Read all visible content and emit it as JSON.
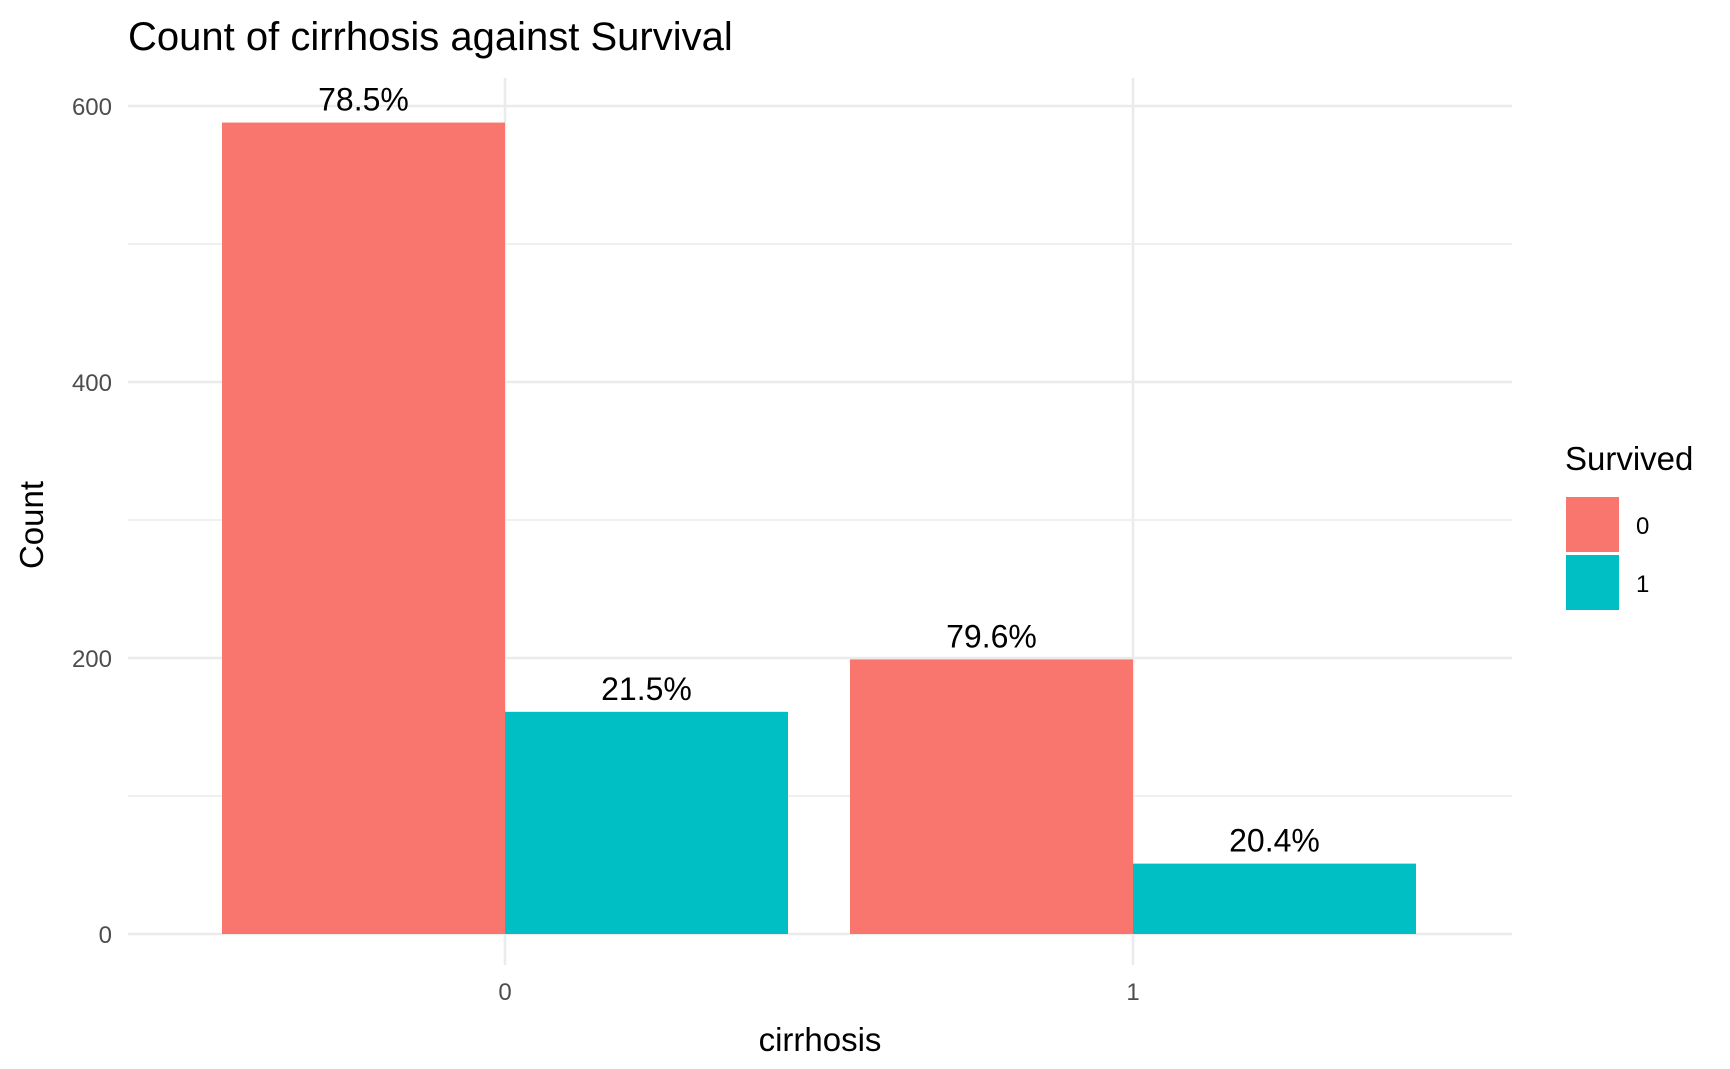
{
  "chart_data": {
    "type": "bar",
    "title": "Count of cirrhosis against Survival",
    "xlabel": "cirrhosis",
    "ylabel": "Count",
    "categories": [
      "0",
      "1"
    ],
    "ylim": [
      0,
      627
    ],
    "yticks": [
      0,
      200,
      400,
      600
    ],
    "grid": true,
    "legend": {
      "title": "Survived",
      "position": "right"
    },
    "series": [
      {
        "name": "0",
        "color": "#F8766D",
        "values": [
          588,
          199
        ],
        "labels": [
          "78.5%",
          "79.6%"
        ]
      },
      {
        "name": "1",
        "color": "#00BFC4",
        "values": [
          161,
          51
        ],
        "labels": [
          "21.5%",
          "20.4%"
        ]
      }
    ]
  }
}
